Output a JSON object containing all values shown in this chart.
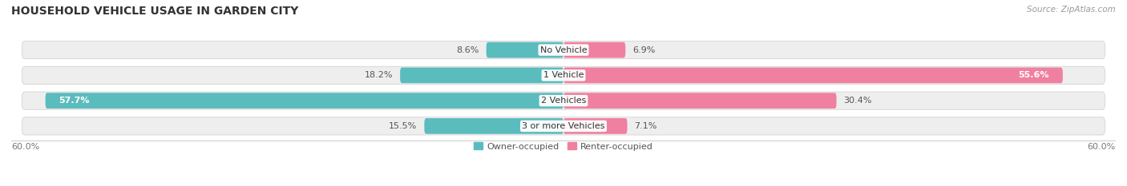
{
  "title": "HOUSEHOLD VEHICLE USAGE IN GARDEN CITY",
  "source": "Source: ZipAtlas.com",
  "categories": [
    "No Vehicle",
    "1 Vehicle",
    "2 Vehicles",
    "3 or more Vehicles"
  ],
  "owner_values": [
    8.6,
    18.2,
    57.7,
    15.5
  ],
  "renter_values": [
    6.9,
    55.6,
    30.4,
    7.1
  ],
  "owner_color": "#5bbcbe",
  "renter_color": "#f080a0",
  "owner_color_light": "#a8dfe0",
  "renter_color_light": "#f5aec8",
  "owner_label": "Owner-occupied",
  "renter_label": "Renter-occupied",
  "axis_max": 60.0,
  "axis_label_left": "60.0%",
  "axis_label_right": "60.0%",
  "bar_height": 0.62,
  "background_color": "#ffffff",
  "bar_bg_color": "#eeeeee",
  "title_fontsize": 10,
  "source_fontsize": 7.5,
  "label_fontsize": 8,
  "category_fontsize": 8
}
